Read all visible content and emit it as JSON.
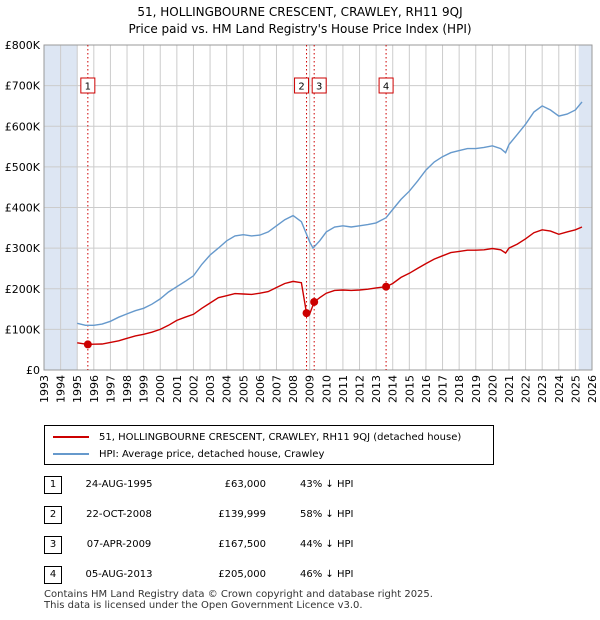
{
  "title_line1": "51, HOLLINGBOURNE CRESCENT, CRAWLEY, RH11 9QJ",
  "title_line2": "Price paid vs. HM Land Registry's House Price Index (HPI)",
  "colors": {
    "property": "#cc0000",
    "hpi": "#6699cc",
    "band": "#dde6f3",
    "grid": "#cccccc"
  },
  "chart_data": {
    "type": "line",
    "title": "51, HOLLINGBOURNE CRESCENT, CRAWLEY, RH11 9QJ",
    "subtitle": "Price paid vs. HM Land Registry's House Price Index (HPI)",
    "xlim": [
      1993,
      2026
    ],
    "ylim": [
      0,
      800000
    ],
    "x_ticks": [
      "1993",
      "1994",
      "1995",
      "1996",
      "1997",
      "1998",
      "1999",
      "2000",
      "2001",
      "2002",
      "2003",
      "2004",
      "2005",
      "2006",
      "2007",
      "2008",
      "2009",
      "2010",
      "2011",
      "2012",
      "2013",
      "2014",
      "2015",
      "2016",
      "2017",
      "2018",
      "2019",
      "2020",
      "2021",
      "2022",
      "2023",
      "2024",
      "2025",
      "2026"
    ],
    "y_ticks": [
      {
        "value": 0,
        "label": "£0"
      },
      {
        "value": 100000,
        "label": "£100K"
      },
      {
        "value": 200000,
        "label": "£200K"
      },
      {
        "value": 300000,
        "label": "£300K"
      },
      {
        "value": 400000,
        "label": "£400K"
      },
      {
        "value": 500000,
        "label": "£500K"
      },
      {
        "value": 600000,
        "label": "£600K"
      },
      {
        "value": 700000,
        "label": "£700K"
      },
      {
        "value": 800000,
        "label": "£800K"
      }
    ],
    "grid": true,
    "shaded_ranges": [
      [
        1993,
        1995
      ],
      [
        2025.2,
        2026
      ]
    ],
    "series": [
      {
        "name": "51, HOLLINGBOURNE CRESCENT, CRAWLEY, RH11 9QJ (detached house)",
        "color": "#cc0000",
        "points": [
          [
            1995.0,
            67000
          ],
          [
            1995.64,
            63000
          ],
          [
            1996.0,
            63500
          ],
          [
            1996.5,
            64000
          ],
          [
            1997.0,
            68000
          ],
          [
            1997.5,
            72000
          ],
          [
            1998.0,
            78000
          ],
          [
            1998.5,
            84000
          ],
          [
            1999.0,
            88000
          ],
          [
            1999.5,
            93000
          ],
          [
            2000.0,
            100000
          ],
          [
            2000.5,
            110000
          ],
          [
            2001.0,
            122000
          ],
          [
            2001.5,
            130000
          ],
          [
            2002.0,
            137000
          ],
          [
            2002.5,
            152000
          ],
          [
            2003.0,
            165000
          ],
          [
            2003.5,
            178000
          ],
          [
            2004.0,
            183000
          ],
          [
            2004.5,
            188000
          ],
          [
            2005.0,
            187000
          ],
          [
            2005.5,
            186000
          ],
          [
            2006.0,
            189000
          ],
          [
            2006.5,
            193000
          ],
          [
            2007.0,
            203000
          ],
          [
            2007.5,
            213000
          ],
          [
            2008.0,
            218000
          ],
          [
            2008.5,
            215000
          ],
          [
            2008.81,
            139999
          ],
          [
            2009.0,
            138000
          ],
          [
            2009.27,
            167500
          ],
          [
            2009.6,
            178000
          ],
          [
            2010.0,
            189000
          ],
          [
            2010.5,
            196000
          ],
          [
            2011.0,
            197000
          ],
          [
            2011.5,
            196000
          ],
          [
            2012.0,
            197000
          ],
          [
            2012.5,
            199000
          ],
          [
            2013.0,
            202000
          ],
          [
            2013.6,
            205000
          ],
          [
            2014.0,
            213000
          ],
          [
            2014.5,
            228000
          ],
          [
            2015.0,
            238000
          ],
          [
            2015.5,
            250000
          ],
          [
            2016.0,
            262000
          ],
          [
            2016.5,
            273000
          ],
          [
            2017.0,
            281000
          ],
          [
            2017.5,
            289000
          ],
          [
            2018.0,
            292000
          ],
          [
            2018.5,
            295000
          ],
          [
            2019.0,
            295000
          ],
          [
            2019.5,
            296000
          ],
          [
            2020.0,
            299000
          ],
          [
            2020.5,
            296000
          ],
          [
            2020.8,
            288000
          ],
          [
            2021.0,
            300000
          ],
          [
            2021.5,
            310000
          ],
          [
            2022.0,
            323000
          ],
          [
            2022.5,
            338000
          ],
          [
            2023.0,
            345000
          ],
          [
            2023.5,
            342000
          ],
          [
            2024.0,
            334000
          ],
          [
            2024.5,
            340000
          ],
          [
            2025.0,
            345000
          ],
          [
            2025.4,
            352000
          ]
        ]
      },
      {
        "name": "HPI: Average price, detached house, Crawley",
        "color": "#6699cc",
        "points": [
          [
            1995.0,
            115000
          ],
          [
            1995.5,
            110000
          ],
          [
            1996.0,
            110000
          ],
          [
            1996.5,
            113000
          ],
          [
            1997.0,
            120000
          ],
          [
            1997.5,
            130000
          ],
          [
            1998.0,
            138000
          ],
          [
            1998.5,
            146000
          ],
          [
            1999.0,
            152000
          ],
          [
            1999.5,
            162000
          ],
          [
            2000.0,
            175000
          ],
          [
            2000.5,
            192000
          ],
          [
            2001.0,
            205000
          ],
          [
            2001.5,
            218000
          ],
          [
            2002.0,
            232000
          ],
          [
            2002.5,
            260000
          ],
          [
            2003.0,
            283000
          ],
          [
            2003.5,
            300000
          ],
          [
            2004.0,
            318000
          ],
          [
            2004.5,
            330000
          ],
          [
            2005.0,
            333000
          ],
          [
            2005.5,
            330000
          ],
          [
            2006.0,
            332000
          ],
          [
            2006.5,
            340000
          ],
          [
            2007.0,
            355000
          ],
          [
            2007.5,
            370000
          ],
          [
            2008.0,
            380000
          ],
          [
            2008.5,
            365000
          ],
          [
            2009.0,
            315000
          ],
          [
            2009.2,
            300000
          ],
          [
            2009.6,
            318000
          ],
          [
            2010.0,
            340000
          ],
          [
            2010.5,
            352000
          ],
          [
            2011.0,
            355000
          ],
          [
            2011.5,
            352000
          ],
          [
            2012.0,
            355000
          ],
          [
            2012.5,
            358000
          ],
          [
            2013.0,
            362000
          ],
          [
            2013.6,
            375000
          ],
          [
            2014.0,
            395000
          ],
          [
            2014.5,
            420000
          ],
          [
            2015.0,
            440000
          ],
          [
            2015.5,
            465000
          ],
          [
            2016.0,
            492000
          ],
          [
            2016.5,
            512000
          ],
          [
            2017.0,
            525000
          ],
          [
            2017.5,
            535000
          ],
          [
            2018.0,
            540000
          ],
          [
            2018.5,
            545000
          ],
          [
            2019.0,
            545000
          ],
          [
            2019.5,
            548000
          ],
          [
            2020.0,
            552000
          ],
          [
            2020.5,
            545000
          ],
          [
            2020.8,
            535000
          ],
          [
            2021.0,
            555000
          ],
          [
            2021.5,
            580000
          ],
          [
            2022.0,
            605000
          ],
          [
            2022.5,
            635000
          ],
          [
            2023.0,
            650000
          ],
          [
            2023.5,
            640000
          ],
          [
            2024.0,
            625000
          ],
          [
            2024.5,
            630000
          ],
          [
            2025.0,
            640000
          ],
          [
            2025.4,
            660000
          ]
        ]
      }
    ],
    "markers": [
      {
        "label": "1",
        "x": 1995.64,
        "y": 63000
      },
      {
        "label": "2",
        "x": 2008.81,
        "y": 139999
      },
      {
        "label": "3",
        "x": 2009.27,
        "y": 167500
      },
      {
        "label": "4",
        "x": 2013.6,
        "y": 205000
      }
    ]
  },
  "legend": {
    "property_label": "51, HOLLINGBOURNE CRESCENT, CRAWLEY, RH11 9QJ (detached house)",
    "hpi_label": "HPI: Average price, detached house, Crawley"
  },
  "sales": [
    {
      "num": "1",
      "date": "24-AUG-1995",
      "price": "£63,000",
      "hpi": "43% ↓ HPI"
    },
    {
      "num": "2",
      "date": "22-OCT-2008",
      "price": "£139,999",
      "hpi": "58% ↓ HPI"
    },
    {
      "num": "3",
      "date": "07-APR-2009",
      "price": "£167,500",
      "hpi": "44% ↓ HPI"
    },
    {
      "num": "4",
      "date": "05-AUG-2013",
      "price": "£205,000",
      "hpi": "46% ↓ HPI"
    }
  ],
  "footer": {
    "line1": "Contains HM Land Registry data © Crown copyright and database right 2025.",
    "line2": "This data is licensed under the Open Government Licence v3.0."
  }
}
